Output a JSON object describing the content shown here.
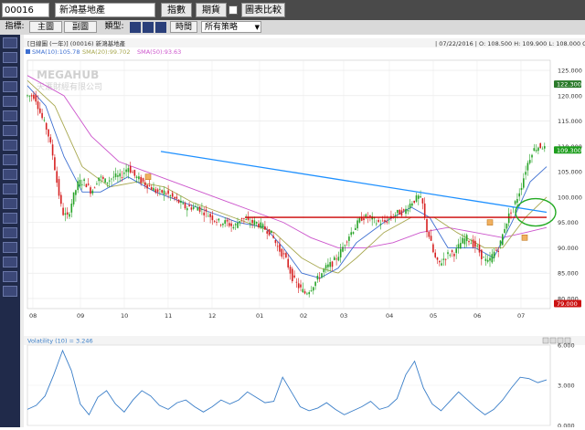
{
  "topbar": {
    "code": "00016",
    "name": "新鴻基地產",
    "buttons": [
      "指數",
      "期貨",
      "圖表比較"
    ]
  },
  "toolbar": {
    "indicator_label": "指標:",
    "tabs": [
      "主圖",
      "副圖"
    ],
    "chart_type_label": "類型:",
    "period_button": "時間",
    "strategy_select": "所有策略"
  },
  "chart_header": {
    "left": "[日線圖 (一年)]   (00016)   新鴻基地產",
    "right": "| 07/22/2016 |  O: 108.500  H: 109.900  L: 108.000  C: 109.300"
  },
  "legend": {
    "sma10": "SMA(10):105.78",
    "sma20": "SMA(20):99.702",
    "sma50": "SMA(50):93.63"
  },
  "watermark": {
    "line1": "MEGAHUB",
    "line2": "天滙財經有限公司"
  },
  "price_axis": {
    "labels": [
      "125.000",
      "120.000",
      "115.000",
      "110.000",
      "105.000",
      "100.000",
      "95.000",
      "90.000",
      "85.000",
      "80.000"
    ],
    "last_price_tag": "122.300",
    "green_tag": "109.300",
    "red_tag": "79.000"
  },
  "months": [
    "08",
    "09",
    "10",
    "11",
    "12",
    "01",
    "02",
    "03",
    "04",
    "05",
    "06",
    "07"
  ],
  "indicator": {
    "label": "Volatility (10) = 3.246",
    "axis_labels": [
      "6.000",
      "3.000",
      "0.000"
    ]
  },
  "colors": {
    "up": "#27a327",
    "down": "#d62020",
    "sma10": "#3d6fd1",
    "sma20": "#a8a850",
    "sma50": "#cc55cc",
    "trend_blue": "#1e90ff",
    "trend_red": "#cc0000",
    "circle": "#22aa22",
    "volatility": "#3a7ec8"
  },
  "chart_data": {
    "type": "candlestick",
    "title": "新鴻基地產 (00016) 日線圖",
    "ylim": [
      78,
      127
    ],
    "x_ticks": [
      "08",
      "09",
      "10",
      "11",
      "12",
      "01",
      "02",
      "03",
      "04",
      "05",
      "06",
      "07"
    ],
    "close_path": [
      [
        0,
        120
      ],
      [
        8,
        120
      ],
      [
        15,
        116
      ],
      [
        22,
        113
      ],
      [
        28,
        108
      ],
      [
        33,
        102
      ],
      [
        38,
        97
      ],
      [
        44,
        96
      ],
      [
        50,
        100
      ],
      [
        56,
        103
      ],
      [
        63,
        103
      ],
      [
        70,
        101
      ],
      [
        78,
        104
      ],
      [
        86,
        103
      ],
      [
        94,
        104
      ],
      [
        102,
        104
      ],
      [
        110,
        106
      ],
      [
        118,
        104
      ],
      [
        126,
        103
      ],
      [
        134,
        102
      ],
      [
        142,
        101
      ],
      [
        150,
        101
      ],
      [
        158,
        100
      ],
      [
        166,
        99
      ],
      [
        172,
        98
      ],
      [
        178,
        98
      ],
      [
        186,
        98
      ],
      [
        194,
        97
      ],
      [
        202,
        96
      ],
      [
        210,
        95
      ],
      [
        218,
        95
      ],
      [
        226,
        94
      ],
      [
        234,
        96
      ],
      [
        242,
        95
      ],
      [
        250,
        95
      ],
      [
        258,
        94
      ],
      [
        266,
        93
      ],
      [
        274,
        90
      ],
      [
        282,
        88
      ],
      [
        290,
        84
      ],
      [
        298,
        82
      ],
      [
        304,
        81
      ],
      [
        310,
        82
      ],
      [
        318,
        84
      ],
      [
        326,
        86
      ],
      [
        334,
        87
      ],
      [
        342,
        89
      ],
      [
        350,
        92
      ],
      [
        358,
        94
      ],
      [
        366,
        96
      ],
      [
        374,
        96
      ],
      [
        382,
        95
      ],
      [
        390,
        95
      ],
      [
        398,
        96
      ],
      [
        406,
        97
      ],
      [
        412,
        97
      ],
      [
        420,
        99
      ],
      [
        428,
        100
      ],
      [
        432,
        99
      ],
      [
        436,
        94
      ],
      [
        440,
        92
      ],
      [
        444,
        89
      ],
      [
        448,
        87
      ],
      [
        452,
        87
      ],
      [
        456,
        88
      ],
      [
        462,
        89
      ],
      [
        468,
        89
      ],
      [
        474,
        91
      ],
      [
        480,
        92
      ],
      [
        486,
        91
      ],
      [
        492,
        90
      ],
      [
        498,
        88
      ],
      [
        504,
        87
      ],
      [
        510,
        89
      ],
      [
        516,
        90
      ],
      [
        522,
        94
      ],
      [
        528,
        97
      ],
      [
        534,
        99
      ],
      [
        540,
        102
      ],
      [
        546,
        106
      ],
      [
        552,
        109
      ],
      [
        558,
        110
      ],
      [
        564,
        110
      ],
      [
        568,
        109
      ]
    ],
    "sma10": [
      [
        0,
        122
      ],
      [
        20,
        118
      ],
      [
        40,
        108
      ],
      [
        60,
        101
      ],
      [
        80,
        101
      ],
      [
        110,
        104
      ],
      [
        140,
        101
      ],
      [
        170,
        99
      ],
      [
        200,
        97
      ],
      [
        230,
        95
      ],
      [
        260,
        94
      ],
      [
        280,
        90
      ],
      [
        300,
        85
      ],
      [
        320,
        84
      ],
      [
        340,
        86
      ],
      [
        360,
        91
      ],
      [
        390,
        95
      ],
      [
        420,
        98
      ],
      [
        440,
        96
      ],
      [
        460,
        90
      ],
      [
        490,
        90
      ],
      [
        510,
        88
      ],
      [
        530,
        95
      ],
      [
        550,
        103
      ],
      [
        568,
        106
      ]
    ],
    "sma20": [
      [
        0,
        123
      ],
      [
        30,
        118
      ],
      [
        60,
        106
      ],
      [
        90,
        102
      ],
      [
        120,
        103
      ],
      [
        150,
        102
      ],
      [
        180,
        99
      ],
      [
        210,
        97
      ],
      [
        240,
        95
      ],
      [
        270,
        93
      ],
      [
        300,
        88
      ],
      [
        320,
        86
      ],
      [
        340,
        85
      ],
      [
        360,
        88
      ],
      [
        390,
        93
      ],
      [
        420,
        96
      ],
      [
        445,
        96
      ],
      [
        470,
        93
      ],
      [
        500,
        90
      ],
      [
        520,
        90
      ],
      [
        545,
        96
      ],
      [
        568,
        100
      ]
    ],
    "sma50": [
      [
        0,
        124
      ],
      [
        40,
        120
      ],
      [
        70,
        112
      ],
      [
        100,
        107
      ],
      [
        130,
        105
      ],
      [
        160,
        103
      ],
      [
        190,
        101
      ],
      [
        220,
        99
      ],
      [
        250,
        97
      ],
      [
        280,
        95
      ],
      [
        310,
        92
      ],
      [
        340,
        90
      ],
      [
        370,
        90
      ],
      [
        400,
        91
      ],
      [
        430,
        93
      ],
      [
        460,
        94
      ],
      [
        490,
        93
      ],
      [
        520,
        92
      ],
      [
        545,
        93
      ],
      [
        568,
        94
      ]
    ],
    "trendlines": [
      {
        "name": "resistance",
        "from": [
          146,
          109
        ],
        "to": [
          568,
          97
        ]
      },
      {
        "name": "neckline",
        "from": [
          238,
          96
        ],
        "to": [
          568,
          96
        ]
      }
    ],
    "volatility_series": [
      1.2,
      1.5,
      2.2,
      3.8,
      5.6,
      4.1,
      1.6,
      0.8,
      2.1,
      2.6,
      1.6,
      1.0,
      1.9,
      2.6,
      2.2,
      1.5,
      1.2,
      1.7,
      1.9,
      1.4,
      1.0,
      1.4,
      1.9,
      1.6,
      1.9,
      2.5,
      2.1,
      1.7,
      1.8,
      3.6,
      2.5,
      1.4,
      1.1,
      1.3,
      1.7,
      1.2,
      0.8,
      1.1,
      1.4,
      1.8,
      1.2,
      1.4,
      2.0,
      3.8,
      4.8,
      2.8,
      1.6,
      1.1,
      1.8,
      2.5,
      1.9,
      1.3,
      0.8,
      1.2,
      1.9,
      2.8,
      3.6,
      3.5,
      3.2,
      3.4
    ],
    "volatility_ylim": [
      0,
      6
    ],
    "volatility_last": 3.246
  }
}
